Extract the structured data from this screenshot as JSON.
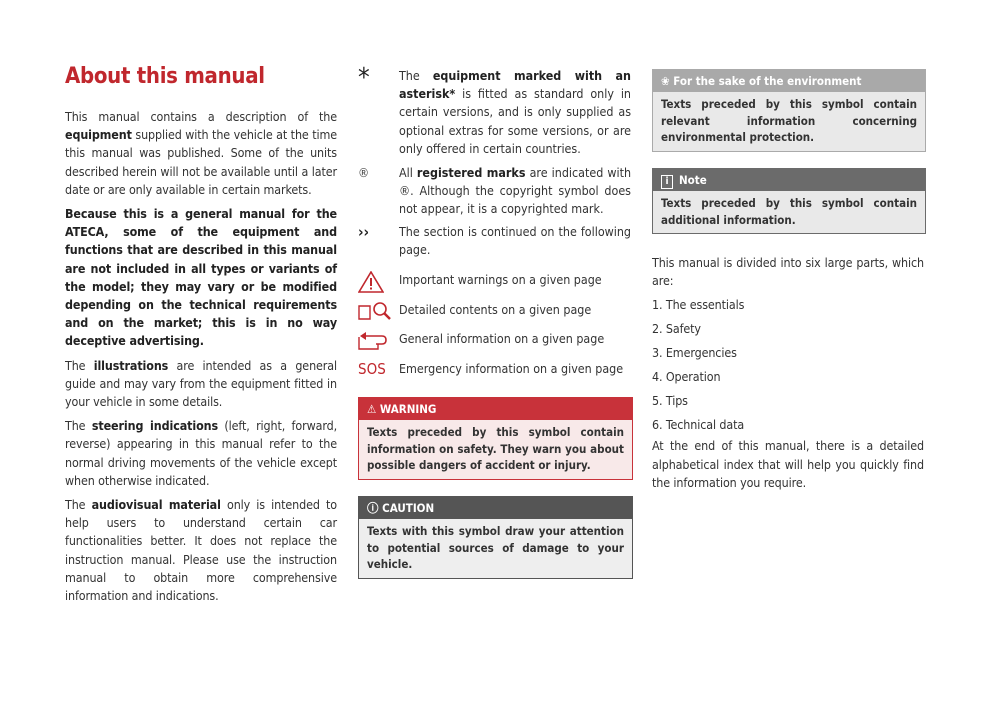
{
  "title": "About this manual",
  "left": {
    "p1": [
      "This manual contains a description of the ",
      "equipment",
      " supplied with the vehicle at the time this manual was published. Some of the units described herein will not be available until a later date or are only available in certain markets."
    ],
    "p2": "Because this is a general manual for the ATECA, some of the equipment and functions that are described in this manual are not included in all types or variants of the model; they may vary or be modified depending on the technical requirements and on the market; this is in no way deceptive advertising.",
    "p3": [
      "The ",
      "illustrations",
      " are intended as a general guide and may vary from the equipment fitted in your vehicle in some details."
    ],
    "p4": [
      "The ",
      "steering indications",
      " (left, right, forward, reverse) appearing in this manual refer to the normal driving movements of the vehicle except when otherwise indicated."
    ],
    "p5": [
      "The ",
      "audiovisual material",
      " only is intended to help users to understand certain car functionalities better. It does not replace the instruction manual. Please use the instruction manual to obtain more comprehensive information and indications."
    ]
  },
  "middle": {
    "asterisk": {
      "symbol": "*",
      "parts": [
        "The ",
        "equipment marked with an asterisk*",
        " is fitted as standard only in certain versions, and is only supplied as optional extras for some versions, or are only offered in certain countries."
      ]
    },
    "registered": {
      "symbol": "®",
      "parts": [
        "All ",
        "registered marks",
        " are indicated with ®. Although the copyright symbol does not appear, it is a copyrighted mark."
      ]
    },
    "continued": {
      "symbol": "››",
      "text": "The section is continued on the following page."
    },
    "icons": [
      {
        "icon": "warning-triangle-icon",
        "text": "Important warnings on a given page"
      },
      {
        "icon": "book-magnifier-icon",
        "text": "Detailed contents on a given page"
      },
      {
        "icon": "book-arrow-icon",
        "text": "General information on a given page"
      },
      {
        "icon": "sos-icon",
        "symbol": "SOS",
        "text": "Emergency information on a given page"
      }
    ],
    "warning": {
      "title": "WARNING",
      "body": "Texts preceded by this symbol contain information on safety. They warn you about possible dangers of accident or injury.",
      "color": "#c8323a"
    },
    "caution": {
      "title": "CAUTION",
      "body": "Texts with this symbol draw your attention to potential sources of damage to your vehicle.",
      "color": "#555555"
    }
  },
  "right": {
    "environment": {
      "title": "For the sake of the environment",
      "body": "Texts preceded by this symbol contain relevant information concerning environmental protection."
    },
    "note": {
      "title": "Note",
      "body": "Texts preceded by this symbol contain additional information."
    },
    "intro": "This manual is divided into six large parts, which are:",
    "parts": [
      "1. The essentials",
      "2. Safety",
      "3. Emergencies",
      "4. Operation",
      "5. Tips",
      "6. Technical data"
    ],
    "outro": "At the end of this manual, there is a detailed alphabetical index that will help you quickly find the information you require."
  },
  "colors": {
    "accent": "#c0272d"
  }
}
